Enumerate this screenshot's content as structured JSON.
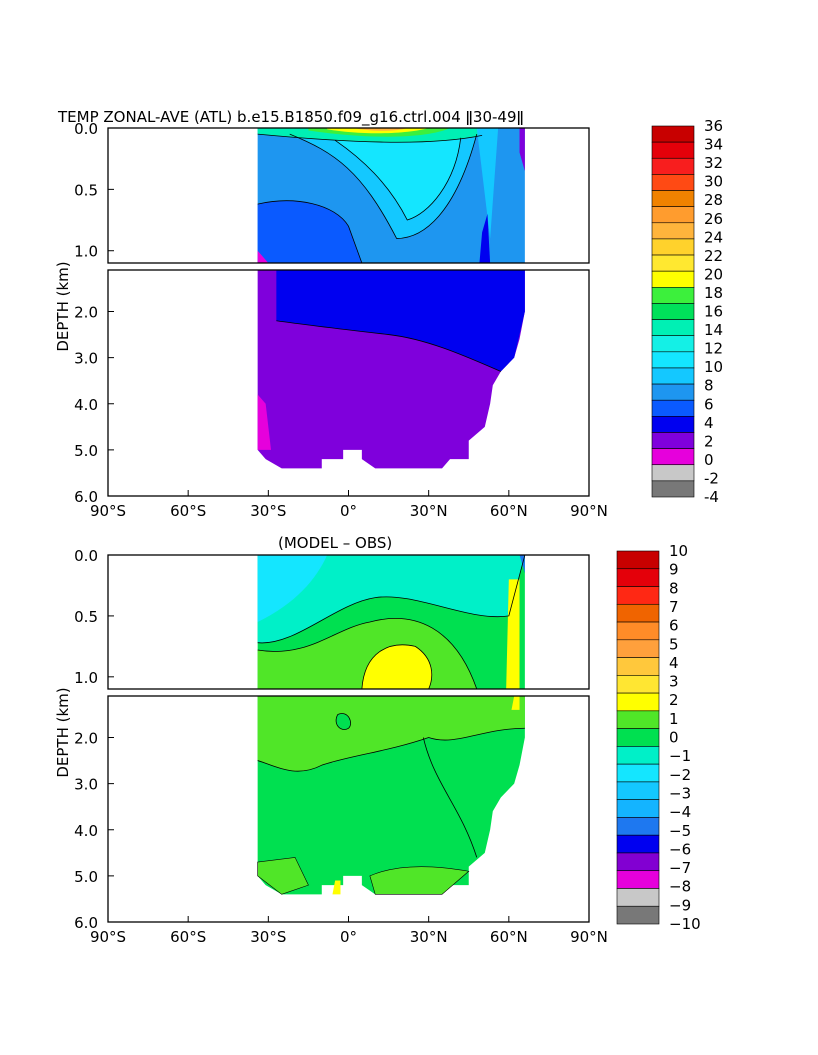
{
  "chart_data": [
    {
      "type": "heatmap",
      "title": "TEMP ZONAL-AVE (ATL) b.e15.B1850.f09_g16.ctrl.004 ǁ30-49ǁ",
      "ylabel": "DEPTH (km)",
      "x_ticks": [
        "90°S",
        "60°S",
        "30°S",
        "0°",
        "30°N",
        "60°N",
        "90°N"
      ],
      "x_values": [
        -90,
        -60,
        -30,
        0,
        30,
        60,
        90
      ],
      "y_ticks_upper": [
        "0.0",
        "0.5",
        "1.0"
      ],
      "y_ticks_lower": [
        "2.0",
        "3.0",
        "4.0",
        "5.0",
        "6.0"
      ],
      "xlim": [
        -90,
        90
      ],
      "ylim_upper": [
        0,
        1.1
      ],
      "ylim_lower": [
        1.1,
        6.0
      ],
      "colorbar": {
        "labels": [
          "36",
          "34",
          "32",
          "30",
          "28",
          "26",
          "24",
          "22",
          "20",
          "18",
          "16",
          "14",
          "12",
          "10",
          "8",
          "6",
          "4",
          "2",
          "0",
          "-2",
          "-4"
        ],
        "colors": [
          "#c80000",
          "#e4000a",
          "#f81e1e",
          "#ff4a14",
          "#f08200",
          "#ff9c2e",
          "#ffb43c",
          "#ffd22c",
          "#ffe830",
          "#ffff00",
          "#3cf03c",
          "#00e05a",
          "#00f0b4",
          "#14f0e6",
          "#14e6ff",
          "#14c8ff",
          "#1e96f0",
          "#0a5aff",
          "#0000f0",
          "#7f00dc",
          "#e600dc",
          "#c8c8c8",
          "#787878"
        ]
      }
    },
    {
      "type": "heatmap",
      "title": "(MODEL – OBS)",
      "ylabel": "DEPTH (km)",
      "x_ticks": [
        "90°S",
        "60°S",
        "30°S",
        "0°",
        "30°N",
        "60°N",
        "90°N"
      ],
      "x_values": [
        -90,
        -60,
        -30,
        0,
        30,
        60,
        90
      ],
      "y_ticks_upper": [
        "0.0",
        "0.5",
        "1.0"
      ],
      "y_ticks_lower": [
        "2.0",
        "3.0",
        "4.0",
        "5.0",
        "6.0"
      ],
      "xlim": [
        -90,
        90
      ],
      "ylim_upper": [
        0,
        1.1
      ],
      "ylim_lower": [
        1.1,
        6.0
      ],
      "colorbar": {
        "labels": [
          "10",
          "9",
          "8",
          "7",
          "6",
          "5",
          "4",
          "3",
          "2",
          "1",
          "0",
          "−1",
          "−2",
          "−3",
          "−4",
          "−5",
          "−6",
          "−7",
          "−8",
          "−9",
          "−10"
        ],
        "colors": [
          "#c80000",
          "#e4000a",
          "#ff2814",
          "#f06400",
          "#ff8c28",
          "#ffa03c",
          "#ffc83c",
          "#ffe632",
          "#ffff00",
          "#50e628",
          "#00e050",
          "#00f0c8",
          "#14e6ff",
          "#14c8ff",
          "#14b4ff",
          "#1e78f0",
          "#0000f0",
          "#8200d2",
          "#e600dc",
          "#c8c8c8",
          "#787878"
        ]
      }
    }
  ]
}
